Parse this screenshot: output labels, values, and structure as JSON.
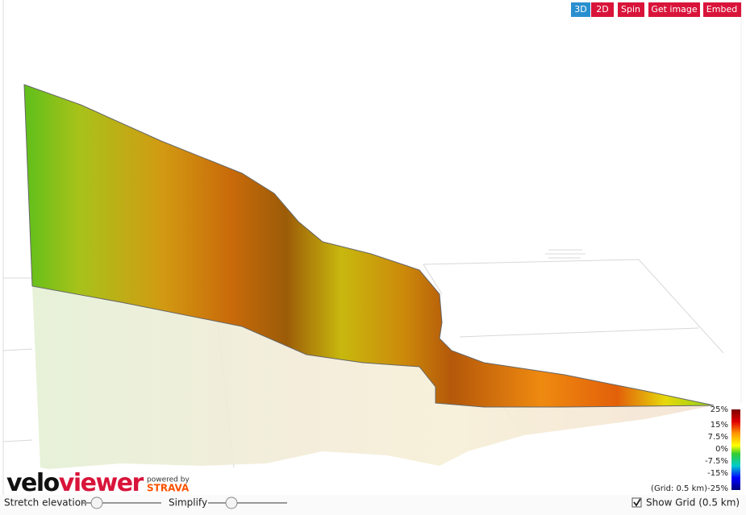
{
  "toolbar": {
    "buttons": [
      "3D",
      "2D",
      "Spin",
      "Get image",
      "Embed"
    ]
  },
  "legend": {
    "labels": [
      "25%",
      "15%",
      "7.5%",
      "0%",
      "-7.5%",
      "-15%",
      "-25%"
    ],
    "grid_note": "(Grid: 0.5 km)"
  },
  "logo": {
    "part1": "velo",
    "part2": "viewer",
    "powered_by": "powered by",
    "strava": "STRAVA"
  },
  "controls": {
    "stretch_elevation": "Stretch elevation",
    "simplify": "Simplify",
    "show_grid": "Show Grid (0.5 km)"
  }
}
